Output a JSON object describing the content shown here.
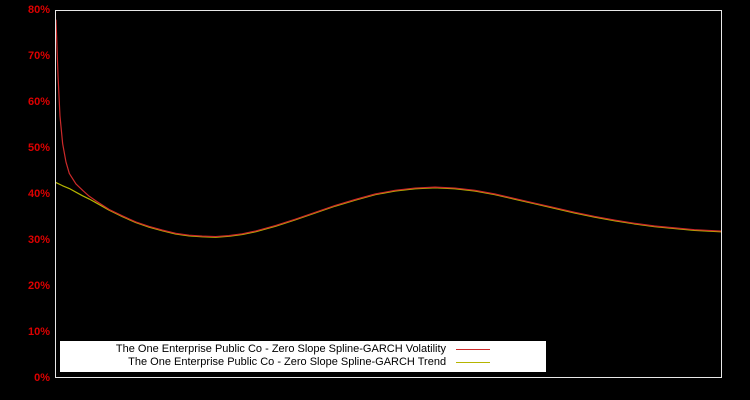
{
  "colors": {
    "background": "#000000",
    "axis_label": "#dd0000",
    "plot_border": "#e8e8e8",
    "legend_background": "#ffffff",
    "legend_text": "#000000",
    "volatility_line": "#cc2a2a",
    "trend_line": "#b5b500"
  },
  "chart_data": {
    "type": "line",
    "title": "",
    "xlabel": "",
    "ylabel": "",
    "xlim": [
      0,
      100
    ],
    "ylim": [
      0,
      80
    ],
    "grid": false,
    "legend_position": "bottom-center",
    "y_ticks": [
      "80%",
      "70%",
      "60%",
      "50%",
      "40%",
      "30%",
      "20%",
      "10%",
      "0%"
    ],
    "x_ticks": [],
    "series": [
      {
        "name": "The One Enterprise Public Co - Zero Slope Spline-GARCH Volatility",
        "color": "#cc2a2a",
        "stroke_width": 1.2,
        "points": [
          [
            0,
            78
          ],
          [
            0.3,
            66
          ],
          [
            0.6,
            57
          ],
          [
            1,
            51
          ],
          [
            1.5,
            47
          ],
          [
            2,
            44.5
          ],
          [
            3,
            42.2
          ],
          [
            4,
            40.8
          ],
          [
            5,
            39.5
          ],
          [
            6,
            38.5
          ],
          [
            8,
            36.6
          ],
          [
            10,
            35.2
          ],
          [
            12,
            33.9
          ],
          [
            14,
            32.9
          ],
          [
            16,
            32.1
          ],
          [
            18,
            31.4
          ],
          [
            20,
            31.0
          ],
          [
            22,
            30.8
          ],
          [
            24,
            30.7
          ],
          [
            26,
            30.9
          ],
          [
            28,
            31.3
          ],
          [
            30,
            31.9
          ],
          [
            33,
            33.1
          ],
          [
            36,
            34.5
          ],
          [
            39,
            36.0
          ],
          [
            42,
            37.5
          ],
          [
            45,
            38.8
          ],
          [
            48,
            40.0
          ],
          [
            51,
            40.8
          ],
          [
            54,
            41.3
          ],
          [
            57,
            41.5
          ],
          [
            60,
            41.3
          ],
          [
            63,
            40.8
          ],
          [
            66,
            40.0
          ],
          [
            69,
            39.0
          ],
          [
            72,
            38.0
          ],
          [
            75,
            37.0
          ],
          [
            78,
            36.0
          ],
          [
            81,
            35.1
          ],
          [
            84,
            34.3
          ],
          [
            87,
            33.6
          ],
          [
            90,
            33.0
          ],
          [
            93,
            32.6
          ],
          [
            96,
            32.2
          ],
          [
            100,
            31.9
          ]
        ]
      },
      {
        "name": "The One Enterprise Public Co - Zero Slope Spline-GARCH Trend",
        "color": "#b5b500",
        "stroke_width": 1.2,
        "points": [
          [
            0,
            42.5
          ],
          [
            1,
            41.8
          ],
          [
            2,
            41.2
          ],
          [
            3,
            40.4
          ],
          [
            4,
            39.6
          ],
          [
            5,
            38.9
          ],
          [
            6,
            38.1
          ],
          [
            8,
            36.45
          ],
          [
            10,
            35.05
          ],
          [
            12,
            33.75
          ],
          [
            14,
            32.75
          ],
          [
            16,
            31.95
          ],
          [
            18,
            31.25
          ],
          [
            20,
            30.85
          ],
          [
            22,
            30.65
          ],
          [
            24,
            30.55
          ],
          [
            26,
            30.75
          ],
          [
            28,
            31.15
          ],
          [
            30,
            31.75
          ],
          [
            33,
            32.95
          ],
          [
            36,
            34.35
          ],
          [
            39,
            35.85
          ],
          [
            42,
            37.35
          ],
          [
            45,
            38.65
          ],
          [
            48,
            39.85
          ],
          [
            51,
            40.65
          ],
          [
            54,
            41.15
          ],
          [
            57,
            41.35
          ],
          [
            60,
            41.15
          ],
          [
            63,
            40.65
          ],
          [
            66,
            39.85
          ],
          [
            69,
            38.85
          ],
          [
            72,
            37.85
          ],
          [
            75,
            36.85
          ],
          [
            78,
            35.85
          ],
          [
            81,
            34.95
          ],
          [
            84,
            34.15
          ],
          [
            87,
            33.45
          ],
          [
            90,
            32.85
          ],
          [
            93,
            32.45
          ],
          [
            96,
            32.05
          ],
          [
            100,
            31.75
          ]
        ]
      }
    ]
  }
}
